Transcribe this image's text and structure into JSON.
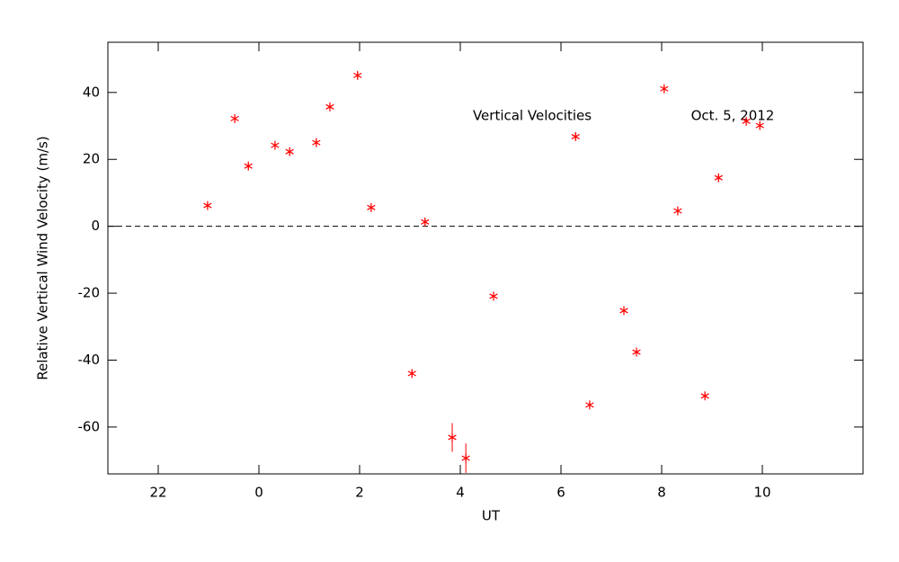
{
  "chart_data": {
    "type": "scatter",
    "x_label": "UT",
    "y_label": "Relative Vertical Wind Velocity (m/s)",
    "annotations": [
      "Vertical Velocities",
      "Oct. 5, 2012"
    ],
    "xlim": [
      -3,
      12
    ],
    "ylim": [
      -74,
      55
    ],
    "xticks": [
      {
        "value": -2,
        "label": "22"
      },
      0,
      2,
      4,
      6,
      8,
      10
    ],
    "yticks": [
      -60,
      -40,
      -20,
      0,
      20,
      40
    ],
    "hline": 0,
    "series": [
      {
        "color": "#ff0000",
        "x": [
          -1.02,
          -0.48,
          -0.21,
          0.32,
          0.61,
          1.14,
          1.41,
          1.96,
          2.23,
          3.3,
          3.04,
          3.84,
          4.11,
          4.66,
          6.29,
          6.57,
          7.25,
          7.5,
          8.05,
          8.32,
          8.86,
          9.13,
          9.68,
          9.95
        ],
        "values": [
          6.2,
          32.2,
          18.0,
          24.2,
          22.3,
          25.0,
          35.7,
          45.1,
          5.6,
          1.3,
          -44.0,
          -63.1,
          -69.3,
          -20.9,
          26.8,
          -53.4,
          -25.2,
          -37.6,
          41.1,
          4.6,
          -50.7,
          14.5,
          31.4,
          30.1
        ],
        "errors": [
          1,
          1,
          1,
          1,
          1,
          1,
          1,
          1,
          1,
          1,
          1,
          4.3,
          4.4,
          1,
          1,
          1,
          1,
          1,
          1,
          1,
          1,
          1,
          1,
          1
        ]
      }
    ]
  }
}
